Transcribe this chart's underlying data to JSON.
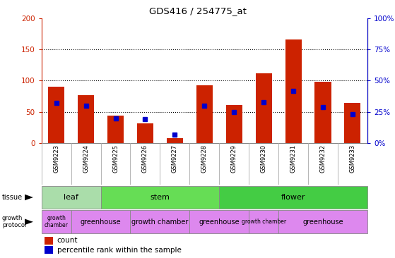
{
  "title": "GDS416 / 254775_at",
  "samples": [
    "GSM9223",
    "GSM9224",
    "GSM9225",
    "GSM9226",
    "GSM9227",
    "GSM9228",
    "GSM9229",
    "GSM9230",
    "GSM9231",
    "GSM9232",
    "GSM9233"
  ],
  "counts": [
    90,
    77,
    44,
    32,
    8,
    93,
    61,
    112,
    166,
    98,
    64
  ],
  "percentiles": [
    32,
    30,
    20,
    19,
    7,
    30,
    25,
    33,
    42,
    29,
    23
  ],
  "ylim_left": [
    0,
    200
  ],
  "ylim_right": [
    0,
    100
  ],
  "yticks_left": [
    0,
    50,
    100,
    150,
    200
  ],
  "yticks_right": [
    0,
    25,
    50,
    75,
    100
  ],
  "bar_color": "#cc2200",
  "dot_color": "#0000cc",
  "grid_yticks": [
    50,
    100,
    150
  ],
  "tissue_groups": [
    {
      "label": "leaf",
      "start": 0,
      "end": 2
    },
    {
      "label": "stem",
      "start": 2,
      "end": 6
    },
    {
      "label": "flower",
      "start": 6,
      "end": 11
    }
  ],
  "tissue_colors": {
    "leaf": "#aaddaa",
    "stem": "#66dd55",
    "flower": "#44cc44"
  },
  "growth_groups": [
    {
      "label": "growth\nchamber",
      "start": 0,
      "end": 1
    },
    {
      "label": "greenhouse",
      "start": 1,
      "end": 3
    },
    {
      "label": "growth chamber",
      "start": 3,
      "end": 5
    },
    {
      "label": "greenhouse",
      "start": 5,
      "end": 7
    },
    {
      "label": "growth chamber",
      "start": 7,
      "end": 8
    },
    {
      "label": "greenhouse",
      "start": 8,
      "end": 11
    }
  ],
  "growth_color": "#dd88ee",
  "left_axis_color": "#cc2200",
  "right_axis_color": "#0000cc",
  "background_color": "#ffffff",
  "xlabels_bg": "#cccccc",
  "cell_divider_color": "#aaaaaa",
  "row_border_color": "#888888"
}
